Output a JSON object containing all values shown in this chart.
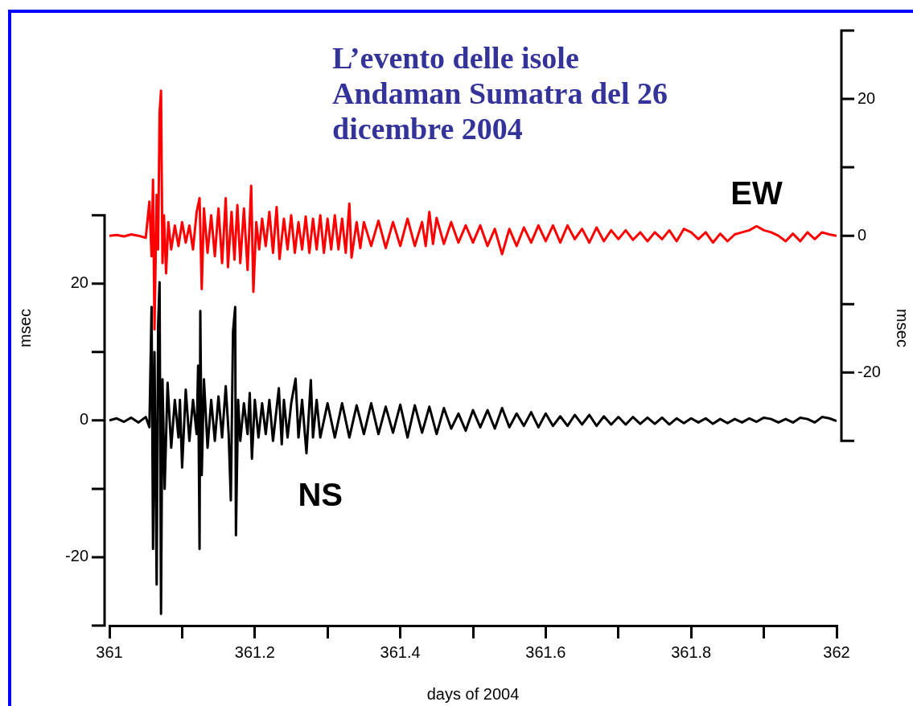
{
  "chart_data": {
    "type": "line",
    "title": "L’evento delle isole Andaman Sumatra del 26 dicembre 2004",
    "xlabel": "days of 2004",
    "ylabel": "msec",
    "y2label": "msec",
    "xlim": [
      361,
      362
    ],
    "xticks": [
      361,
      {
        "value": 361.1,
        "label": null
      },
      361.2,
      {
        "value": 361.3,
        "label": null
      },
      361.4,
      {
        "value": 361.5,
        "label": null
      },
      361.6,
      {
        "value": 361.7,
        "label": null
      },
      361.8,
      {
        "value": 361.9,
        "label": null
      },
      362
    ],
    "ylim": [
      -30,
      57
    ],
    "yticks": [
      {
        "value": -30,
        "label": null
      },
      -20,
      {
        "value": -10,
        "label": null
      },
      0,
      {
        "value": 10,
        "label": null
      },
      20,
      {
        "value": 30,
        "label": null
      }
    ],
    "y2lim": [
      -57,
      30
    ],
    "y2ticks": [
      {
        "value": -30,
        "label": null
      },
      -20,
      {
        "value": -10,
        "label": null
      },
      0,
      {
        "value": 10,
        "label": null
      },
      20,
      {
        "value": 30,
        "label": null
      }
    ],
    "grid": false,
    "marker": "none",
    "series": [
      {
        "name": "EW",
        "color": "#ff0000",
        "axis": "y2",
        "x": [
          361.0,
          361.01,
          361.02,
          361.03,
          361.04,
          361.05,
          361.055,
          361.058,
          361.06,
          361.062,
          361.065,
          361.067,
          361.069,
          361.071,
          361.073,
          361.075,
          361.078,
          361.081,
          361.085,
          361.09,
          361.095,
          361.1,
          361.105,
          361.11,
          361.115,
          361.12,
          361.124,
          361.127,
          361.13,
          361.135,
          361.14,
          361.145,
          361.15,
          361.155,
          361.16,
          361.163,
          361.168,
          361.172,
          361.176,
          361.18,
          361.185,
          361.19,
          361.195,
          361.198,
          361.202,
          361.206,
          361.21,
          361.215,
          361.22,
          361.225,
          361.23,
          361.234,
          361.24,
          361.245,
          361.25,
          361.255,
          361.26,
          361.265,
          361.27,
          361.275,
          361.28,
          361.285,
          361.29,
          361.295,
          361.3,
          361.305,
          361.31,
          361.315,
          361.32,
          361.325,
          361.33,
          361.333,
          361.34,
          361.345,
          361.35,
          361.36,
          361.37,
          361.38,
          361.39,
          361.4,
          361.41,
          361.42,
          361.43,
          361.435,
          361.44,
          361.445,
          361.45,
          361.46,
          361.47,
          361.48,
          361.49,
          361.5,
          361.51,
          361.52,
          361.53,
          361.54,
          361.55,
          361.56,
          361.57,
          361.58,
          361.59,
          361.6,
          361.61,
          361.62,
          361.63,
          361.64,
          361.65,
          361.66,
          361.67,
          361.68,
          361.69,
          361.7,
          361.71,
          361.72,
          361.73,
          361.74,
          361.75,
          361.76,
          361.77,
          361.78,
          361.79,
          361.8,
          361.81,
          361.82,
          361.83,
          361.84,
          361.85,
          361.86,
          361.87,
          361.88,
          361.89,
          361.9,
          361.91,
          361.92,
          361.93,
          361.94,
          361.95,
          361.96,
          361.97,
          361.98,
          361.99,
          362.0
        ],
        "values": [
          0,
          0.1,
          -0.1,
          0.2,
          0,
          -0.3,
          5,
          -3,
          8.2,
          -13.7,
          6,
          -2,
          18,
          21.2,
          -4,
          3,
          -5.5,
          2,
          -2,
          1.5,
          -1.5,
          2,
          -1,
          1.5,
          -2,
          3.5,
          5.5,
          -7.8,
          4,
          -2.5,
          3,
          -3,
          4,
          -4,
          5.5,
          -4.6,
          3.5,
          -3.5,
          4.5,
          -4,
          4,
          -5,
          7.3,
          -8.2,
          2,
          -2,
          2.5,
          -1.5,
          3.5,
          -2.5,
          4.2,
          -3.4,
          2.5,
          -2,
          3,
          -2.5,
          2,
          -2,
          2.8,
          -2.5,
          2.5,
          -2,
          3,
          -2.5,
          2.5,
          -2,
          3,
          -2,
          2.5,
          -2.5,
          4.7,
          -3.2,
          2,
          -1.8,
          2,
          -1.5,
          2.2,
          -1.8,
          2,
          -1.5,
          2.5,
          -1.5,
          2,
          -1.5,
          3.5,
          -1.2,
          2.6,
          -1.2,
          2,
          -1,
          1.5,
          -1,
          1.5,
          -1.5,
          1,
          -2.7,
          1,
          -1.5,
          1.2,
          -1,
          1.5,
          -0.8,
          1.5,
          -1,
          1.5,
          -0.5,
          1,
          -1,
          1.2,
          -0.8,
          0.8,
          -0.5,
          0.8,
          -0.6,
          0.5,
          -0.8,
          0.5,
          -0.5,
          0.8,
          -0.8,
          1,
          0.5,
          -0.5,
          0.5,
          -1,
          0.3,
          -0.8,
          0.2,
          0.5,
          0.8,
          1.4,
          0.8,
          0.5,
          0,
          -0.8,
          0.3,
          -0.8,
          0.5,
          -0.5,
          0.5,
          0.2,
          0
        ]
      },
      {
        "name": "NS",
        "color": "#000000",
        "x": [
          361.0,
          361.01,
          361.02,
          361.03,
          361.04,
          361.05,
          361.055,
          361.058,
          361.06,
          361.062,
          361.065,
          361.067,
          361.069,
          361.071,
          361.073,
          361.076,
          361.08,
          361.085,
          361.09,
          361.095,
          361.097,
          361.1,
          361.105,
          361.11,
          361.115,
          361.12,
          361.122,
          361.124,
          361.125,
          361.127,
          361.13,
          361.135,
          361.14,
          361.145,
          361.15,
          361.155,
          361.16,
          361.164,
          361.167,
          361.17,
          361.173,
          361.174,
          361.177,
          361.18,
          361.185,
          361.19,
          361.193,
          361.196,
          361.2,
          361.205,
          361.21,
          361.215,
          361.22,
          361.225,
          361.233,
          361.237,
          361.24,
          361.245,
          361.25,
          361.256,
          361.26,
          361.265,
          361.271,
          361.277,
          361.28,
          361.285,
          361.29,
          361.3,
          361.31,
          361.32,
          361.33,
          361.34,
          361.35,
          361.36,
          361.37,
          361.38,
          361.39,
          361.4,
          361.41,
          361.42,
          361.43,
          361.44,
          361.45,
          361.46,
          361.47,
          361.48,
          361.49,
          361.5,
          361.51,
          361.52,
          361.53,
          361.54,
          361.55,
          361.56,
          361.57,
          361.58,
          361.59,
          361.6,
          361.61,
          361.62,
          361.63,
          361.64,
          361.65,
          361.66,
          361.67,
          361.68,
          361.69,
          361.7,
          361.71,
          361.72,
          361.73,
          361.74,
          361.75,
          361.76,
          361.77,
          361.78,
          361.79,
          361.8,
          361.81,
          361.82,
          361.83,
          361.84,
          361.85,
          361.86,
          361.87,
          361.88,
          361.89,
          361.9,
          361.91,
          361.92,
          361.93,
          361.94,
          361.95,
          361.96,
          361.97,
          361.98,
          361.99,
          362.0
        ],
        "values": [
          0,
          0.3,
          -0.2,
          0.4,
          -0.3,
          0.5,
          -1,
          16.6,
          -18.8,
          10,
          -24,
          14,
          20.2,
          -28.3,
          6,
          -10,
          5.5,
          -4,
          3,
          -2.5,
          3,
          -6.9,
          4.5,
          -3,
          3,
          -2,
          8,
          -18.8,
          16,
          -8,
          6,
          -4,
          3,
          -3,
          3.5,
          -2.5,
          5,
          -2,
          -11.7,
          13,
          16.6,
          -16.8,
          3,
          -3,
          2.5,
          -2,
          4,
          -5.6,
          3,
          -2.5,
          2.5,
          -2,
          3,
          -3,
          4.7,
          -3.5,
          3,
          -2.5,
          2.5,
          6.1,
          -2.5,
          3,
          -4.8,
          5.9,
          -2.5,
          3,
          -2.5,
          2.5,
          -2.5,
          2.5,
          -2.5,
          2.2,
          -2,
          2.5,
          -2,
          2,
          -1.8,
          2.3,
          -2.5,
          2.2,
          -1.8,
          2,
          -2,
          1.8,
          -1.2,
          1,
          -1.5,
          1.5,
          -1,
          1.5,
          -1.2,
          1.8,
          -1,
          1,
          -0.8,
          1.2,
          -1,
          1,
          -0.8,
          0.6,
          -0.8,
          0.8,
          -0.6,
          0.8,
          -0.8,
          0.6,
          -0.6,
          0.5,
          -0.6,
          0.5,
          -0.5,
          0.4,
          -0.5,
          0.4,
          -0.6,
          0.3,
          -0.4,
          0.3,
          -0.3,
          0.3,
          -0.5,
          0.2,
          -0.4,
          0.2,
          -0.3,
          0.3,
          -0.2,
          0.4,
          0.2,
          -0.3,
          0.2,
          -0.3,
          0.4,
          0.2,
          -0.3,
          0.5,
          0.3,
          -0.1
        ]
      }
    ]
  }
}
